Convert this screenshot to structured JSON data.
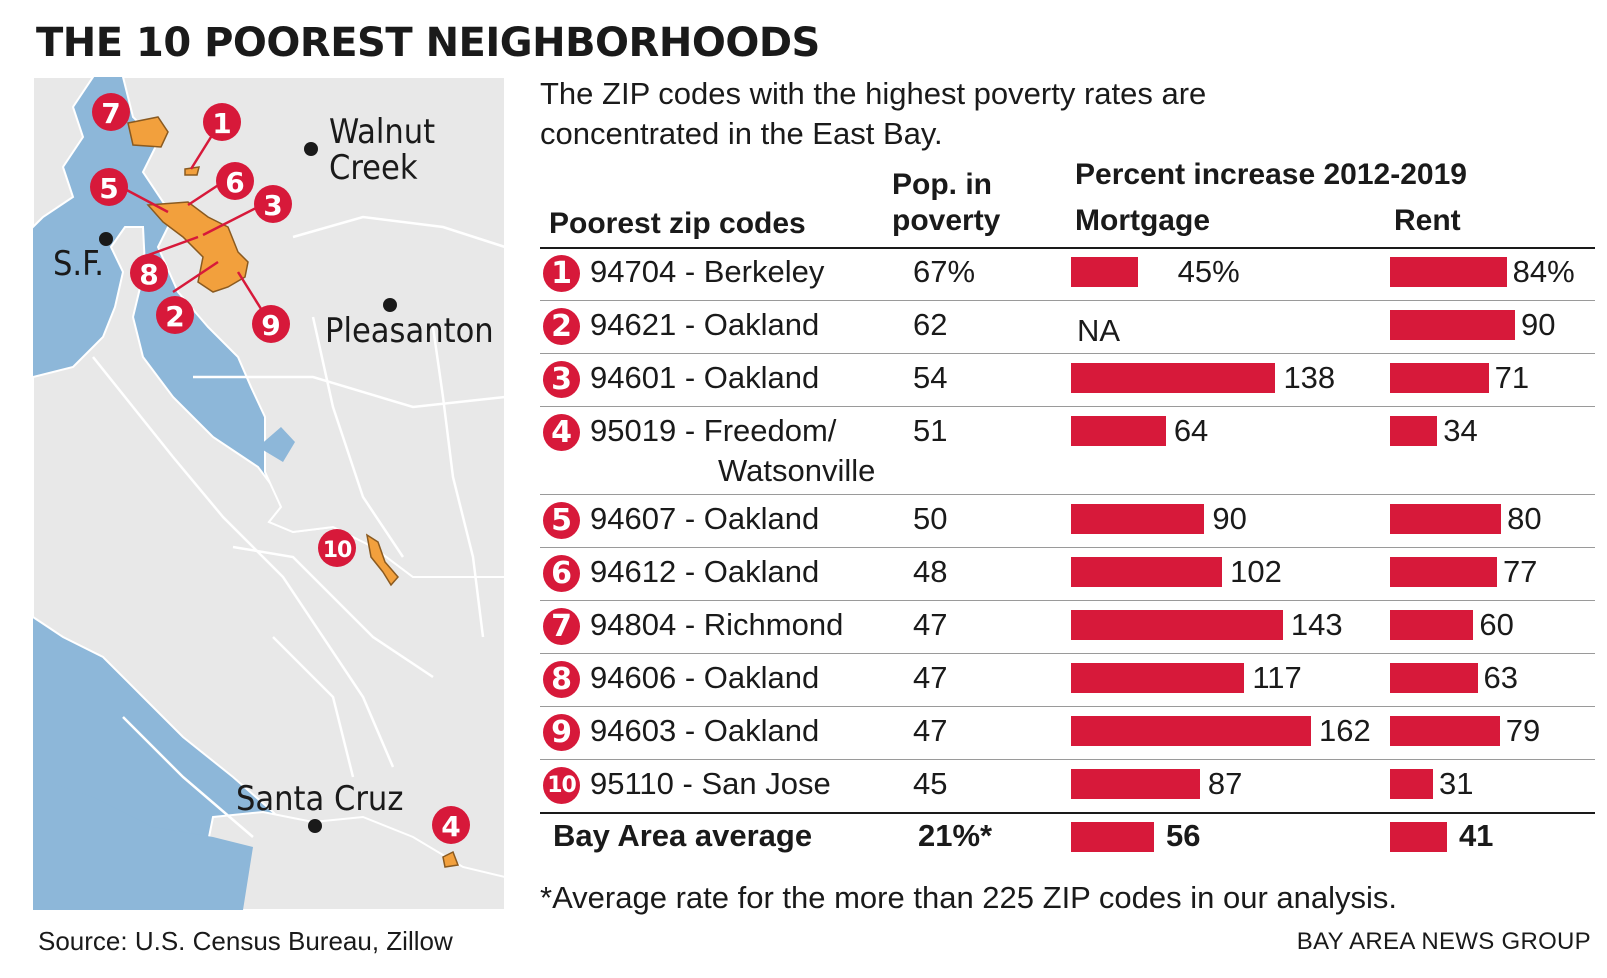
{
  "title": "THE 10 POOREST NEIGHBORHOODS",
  "subtitle": "The ZIP codes with the highest poverty rates are concentrated in the East Bay.",
  "headers": {
    "zip": "Poorest zip codes",
    "pop_line1": "Pop. in",
    "pop_line2": "poverty",
    "pct": "Percent increase 2012-2019",
    "mortgage": "Mortgage",
    "rent": "Rent"
  },
  "map": {
    "cities": [
      "Walnut",
      "Creek",
      "S.F.",
      "Pleasanton",
      "Santa Cruz"
    ]
  },
  "colors": {
    "accent": "#d7193a",
    "water": "#8db7d9",
    "land": "#e8e8e8",
    "zip_area": "#f2a03d"
  },
  "chart_data": {
    "type": "table",
    "title": "THE 10 POOREST NEIGHBORHOODS",
    "columns": [
      "Poorest zip codes",
      "Pop. in poverty",
      "Mortgage",
      "Rent"
    ],
    "rows": [
      {
        "rank": "1",
        "zip": "94704 - Berkeley",
        "pop": "67%",
        "mortgage": 45,
        "mortgage_label": "45%",
        "rent": 84,
        "rent_label": "84%"
      },
      {
        "rank": "2",
        "zip": "94621 - Oakland",
        "pop": "62",
        "mortgage": null,
        "mortgage_label": "NA",
        "rent": 90,
        "rent_label": "90"
      },
      {
        "rank": "3",
        "zip": "94601 - Oakland",
        "pop": "54",
        "mortgage": 138,
        "mortgage_label": "138",
        "rent": 71,
        "rent_label": "71"
      },
      {
        "rank": "4",
        "zip": "95019 - Freedom/",
        "zip2": "Watsonville",
        "pop": "51",
        "mortgage": 64,
        "mortgage_label": "64",
        "rent": 34,
        "rent_label": "34"
      },
      {
        "rank": "5",
        "zip": "94607 - Oakland",
        "pop": "50",
        "mortgage": 90,
        "mortgage_label": "90",
        "rent": 80,
        "rent_label": "80"
      },
      {
        "rank": "6",
        "zip": "94612 - Oakland",
        "pop": "48",
        "mortgage": 102,
        "mortgage_label": "102",
        "rent": 77,
        "rent_label": "77"
      },
      {
        "rank": "7",
        "zip": "94804 - Richmond",
        "pop": "47",
        "mortgage": 143,
        "mortgage_label": "143",
        "rent": 60,
        "rent_label": "60"
      },
      {
        "rank": "8",
        "zip": "94606 - Oakland",
        "pop": "47",
        "mortgage": 117,
        "mortgage_label": "117",
        "rent": 63,
        "rent_label": "63"
      },
      {
        "rank": "9",
        "zip": "94603 - Oakland",
        "pop": "47",
        "mortgage": 162,
        "mortgage_label": "162",
        "rent": 79,
        "rent_label": "79"
      },
      {
        "rank": "10",
        "zip": "95110 - San Jose",
        "pop": "45",
        "mortgage": 87,
        "mortgage_label": "87",
        "rent": 31,
        "rent_label": "31"
      }
    ],
    "average": {
      "label": "Bay Area average",
      "pop": "21%*",
      "mortgage": 56,
      "mortgage_label": "56",
      "rent": 41,
      "rent_label": "41"
    }
  },
  "footnote": "*Average rate for the more than 225 ZIP codes in our analysis.",
  "source": "Source: U.S. Census Bureau, Zillow",
  "credit": "BAY AREA NEWS GROUP"
}
